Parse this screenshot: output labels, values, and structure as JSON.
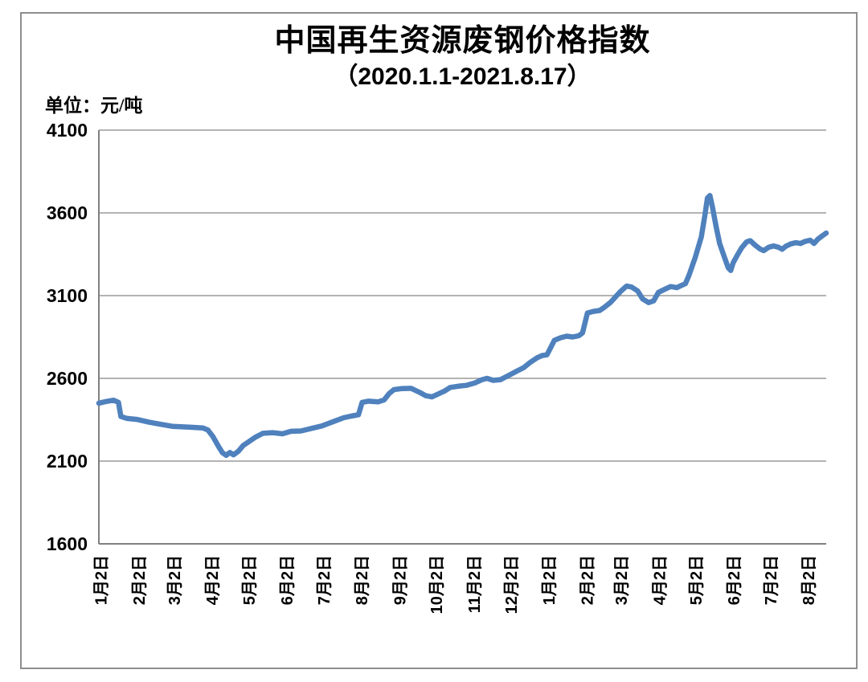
{
  "title": {
    "line1": "中国再生资源废钢价格指数",
    "line2": "（2020.1.1-2021.8.17）"
  },
  "unit_label": "单位：元/吨",
  "colors": {
    "line": "#4F81BD",
    "gridline": "#9a9a9a",
    "axis": "#808080",
    "frame_border": "#8e8e8e",
    "text": "#000000",
    "background": "#ffffff"
  },
  "chart_data": {
    "type": "line",
    "title": "中国再生资源废钢价格指数",
    "subtitle": "（2020.1.1-2021.8.17）",
    "ylabel": "单位：元/吨",
    "ylim": [
      1600,
      4100
    ],
    "yticks": [
      1600,
      2100,
      2600,
      3100,
      3600,
      4100
    ],
    "x_range": [
      "2020-01-01",
      "2021-08-17"
    ],
    "grid": "horizontal",
    "legend": "none",
    "line_color": "#4F81BD",
    "xticks": [
      {
        "label": "1月2日",
        "date": "2020-01-02"
      },
      {
        "label": "2月2日",
        "date": "2020-02-02"
      },
      {
        "label": "3月2日",
        "date": "2020-03-02"
      },
      {
        "label": "4月2日",
        "date": "2020-04-02"
      },
      {
        "label": "5月2日",
        "date": "2020-05-02"
      },
      {
        "label": "6月2日",
        "date": "2020-06-02"
      },
      {
        "label": "7月2日",
        "date": "2020-07-02"
      },
      {
        "label": "8月2日",
        "date": "2020-08-02"
      },
      {
        "label": "9月2日",
        "date": "2020-09-02"
      },
      {
        "label": "10月2日",
        "date": "2020-10-02"
      },
      {
        "label": "11月2日",
        "date": "2020-11-02"
      },
      {
        "label": "12月2日",
        "date": "2020-12-02"
      },
      {
        "label": "1月2日",
        "date": "2021-01-02"
      },
      {
        "label": "2月2日",
        "date": "2021-02-02"
      },
      {
        "label": "3月2日",
        "date": "2021-03-02"
      },
      {
        "label": "4月2日",
        "date": "2021-04-02"
      },
      {
        "label": "5月2日",
        "date": "2021-05-02"
      },
      {
        "label": "6月2日",
        "date": "2021-06-02"
      },
      {
        "label": "7月2日",
        "date": "2021-07-02"
      },
      {
        "label": "8月2日",
        "date": "2021-08-02"
      }
    ],
    "series": [
      {
        "points": [
          [
            "2020-01-01",
            2450
          ],
          [
            "2020-01-07",
            2460
          ],
          [
            "2020-01-13",
            2468
          ],
          [
            "2020-01-17",
            2455
          ],
          [
            "2020-01-19",
            2370
          ],
          [
            "2020-01-24",
            2358
          ],
          [
            "2020-02-01",
            2352
          ],
          [
            "2020-02-11",
            2335
          ],
          [
            "2020-02-21",
            2322
          ],
          [
            "2020-03-01",
            2310
          ],
          [
            "2020-03-15",
            2305
          ],
          [
            "2020-03-26",
            2300
          ],
          [
            "2020-03-30",
            2288
          ],
          [
            "2020-04-03",
            2250
          ],
          [
            "2020-04-08",
            2185
          ],
          [
            "2020-04-11",
            2150
          ],
          [
            "2020-04-14",
            2135
          ],
          [
            "2020-04-17",
            2152
          ],
          [
            "2020-04-20",
            2138
          ],
          [
            "2020-04-24",
            2160
          ],
          [
            "2020-04-28",
            2195
          ],
          [
            "2020-05-03",
            2220
          ],
          [
            "2020-05-08",
            2245
          ],
          [
            "2020-05-14",
            2268
          ],
          [
            "2020-05-22",
            2272
          ],
          [
            "2020-05-30",
            2265
          ],
          [
            "2020-06-06",
            2280
          ],
          [
            "2020-06-14",
            2282
          ],
          [
            "2020-06-23",
            2298
          ],
          [
            "2020-07-01",
            2312
          ],
          [
            "2020-07-11",
            2340
          ],
          [
            "2020-07-19",
            2362
          ],
          [
            "2020-07-25",
            2372
          ],
          [
            "2020-07-31",
            2380
          ],
          [
            "2020-08-03",
            2455
          ],
          [
            "2020-08-08",
            2462
          ],
          [
            "2020-08-16",
            2458
          ],
          [
            "2020-08-21",
            2470
          ],
          [
            "2020-08-25",
            2508
          ],
          [
            "2020-08-29",
            2532
          ],
          [
            "2020-09-04",
            2538
          ],
          [
            "2020-09-12",
            2540
          ],
          [
            "2020-09-19",
            2515
          ],
          [
            "2020-09-24",
            2495
          ],
          [
            "2020-09-29",
            2488
          ],
          [
            "2020-10-04",
            2505
          ],
          [
            "2020-10-09",
            2522
          ],
          [
            "2020-10-14",
            2545
          ],
          [
            "2020-10-20",
            2552
          ],
          [
            "2020-10-27",
            2558
          ],
          [
            "2020-11-03",
            2572
          ],
          [
            "2020-11-09",
            2592
          ],
          [
            "2020-11-13",
            2600
          ],
          [
            "2020-11-18",
            2588
          ],
          [
            "2020-11-24",
            2592
          ],
          [
            "2020-11-30",
            2615
          ],
          [
            "2020-12-07",
            2642
          ],
          [
            "2020-12-13",
            2665
          ],
          [
            "2020-12-18",
            2695
          ],
          [
            "2020-12-24",
            2725
          ],
          [
            "2020-12-28",
            2738
          ],
          [
            "2021-01-01",
            2742
          ],
          [
            "2021-01-07",
            2830
          ],
          [
            "2021-01-12",
            2845
          ],
          [
            "2021-01-17",
            2855
          ],
          [
            "2021-01-22",
            2850
          ],
          [
            "2021-01-27",
            2858
          ],
          [
            "2021-01-30",
            2875
          ],
          [
            "2021-02-03",
            2995
          ],
          [
            "2021-02-08",
            3005
          ],
          [
            "2021-02-13",
            3010
          ],
          [
            "2021-02-17",
            3030
          ],
          [
            "2021-02-22",
            3060
          ],
          [
            "2021-02-26",
            3092
          ],
          [
            "2021-03-02",
            3125
          ],
          [
            "2021-03-07",
            3158
          ],
          [
            "2021-03-11",
            3152
          ],
          [
            "2021-03-16",
            3128
          ],
          [
            "2021-03-20",
            3080
          ],
          [
            "2021-03-25",
            3058
          ],
          [
            "2021-03-29",
            3068
          ],
          [
            "2021-04-02",
            3120
          ],
          [
            "2021-04-07",
            3138
          ],
          [
            "2021-04-12",
            3155
          ],
          [
            "2021-04-17",
            3148
          ],
          [
            "2021-04-21",
            3162
          ],
          [
            "2021-04-24",
            3172
          ],
          [
            "2021-04-27",
            3225
          ],
          [
            "2021-05-02",
            3330
          ],
          [
            "2021-05-07",
            3455
          ],
          [
            "2021-05-10",
            3590
          ],
          [
            "2021-05-12",
            3690
          ],
          [
            "2021-05-14",
            3705
          ],
          [
            "2021-05-16",
            3640
          ],
          [
            "2021-05-19",
            3520
          ],
          [
            "2021-05-22",
            3415
          ],
          [
            "2021-05-26",
            3330
          ],
          [
            "2021-05-29",
            3268
          ],
          [
            "2021-05-31",
            3252
          ],
          [
            "2021-06-02",
            3298
          ],
          [
            "2021-06-06",
            3352
          ],
          [
            "2021-06-09",
            3390
          ],
          [
            "2021-06-13",
            3425
          ],
          [
            "2021-06-16",
            3432
          ],
          [
            "2021-06-20",
            3405
          ],
          [
            "2021-06-24",
            3382
          ],
          [
            "2021-06-27",
            3372
          ],
          [
            "2021-07-01",
            3392
          ],
          [
            "2021-07-05",
            3400
          ],
          [
            "2021-07-09",
            3392
          ],
          [
            "2021-07-12",
            3380
          ],
          [
            "2021-07-15",
            3398
          ],
          [
            "2021-07-19",
            3412
          ],
          [
            "2021-07-23",
            3420
          ],
          [
            "2021-07-27",
            3415
          ],
          [
            "2021-07-31",
            3428
          ],
          [
            "2021-08-04",
            3435
          ],
          [
            "2021-08-07",
            3415
          ],
          [
            "2021-08-10",
            3440
          ],
          [
            "2021-08-14",
            3462
          ],
          [
            "2021-08-17",
            3478
          ]
        ]
      }
    ]
  }
}
